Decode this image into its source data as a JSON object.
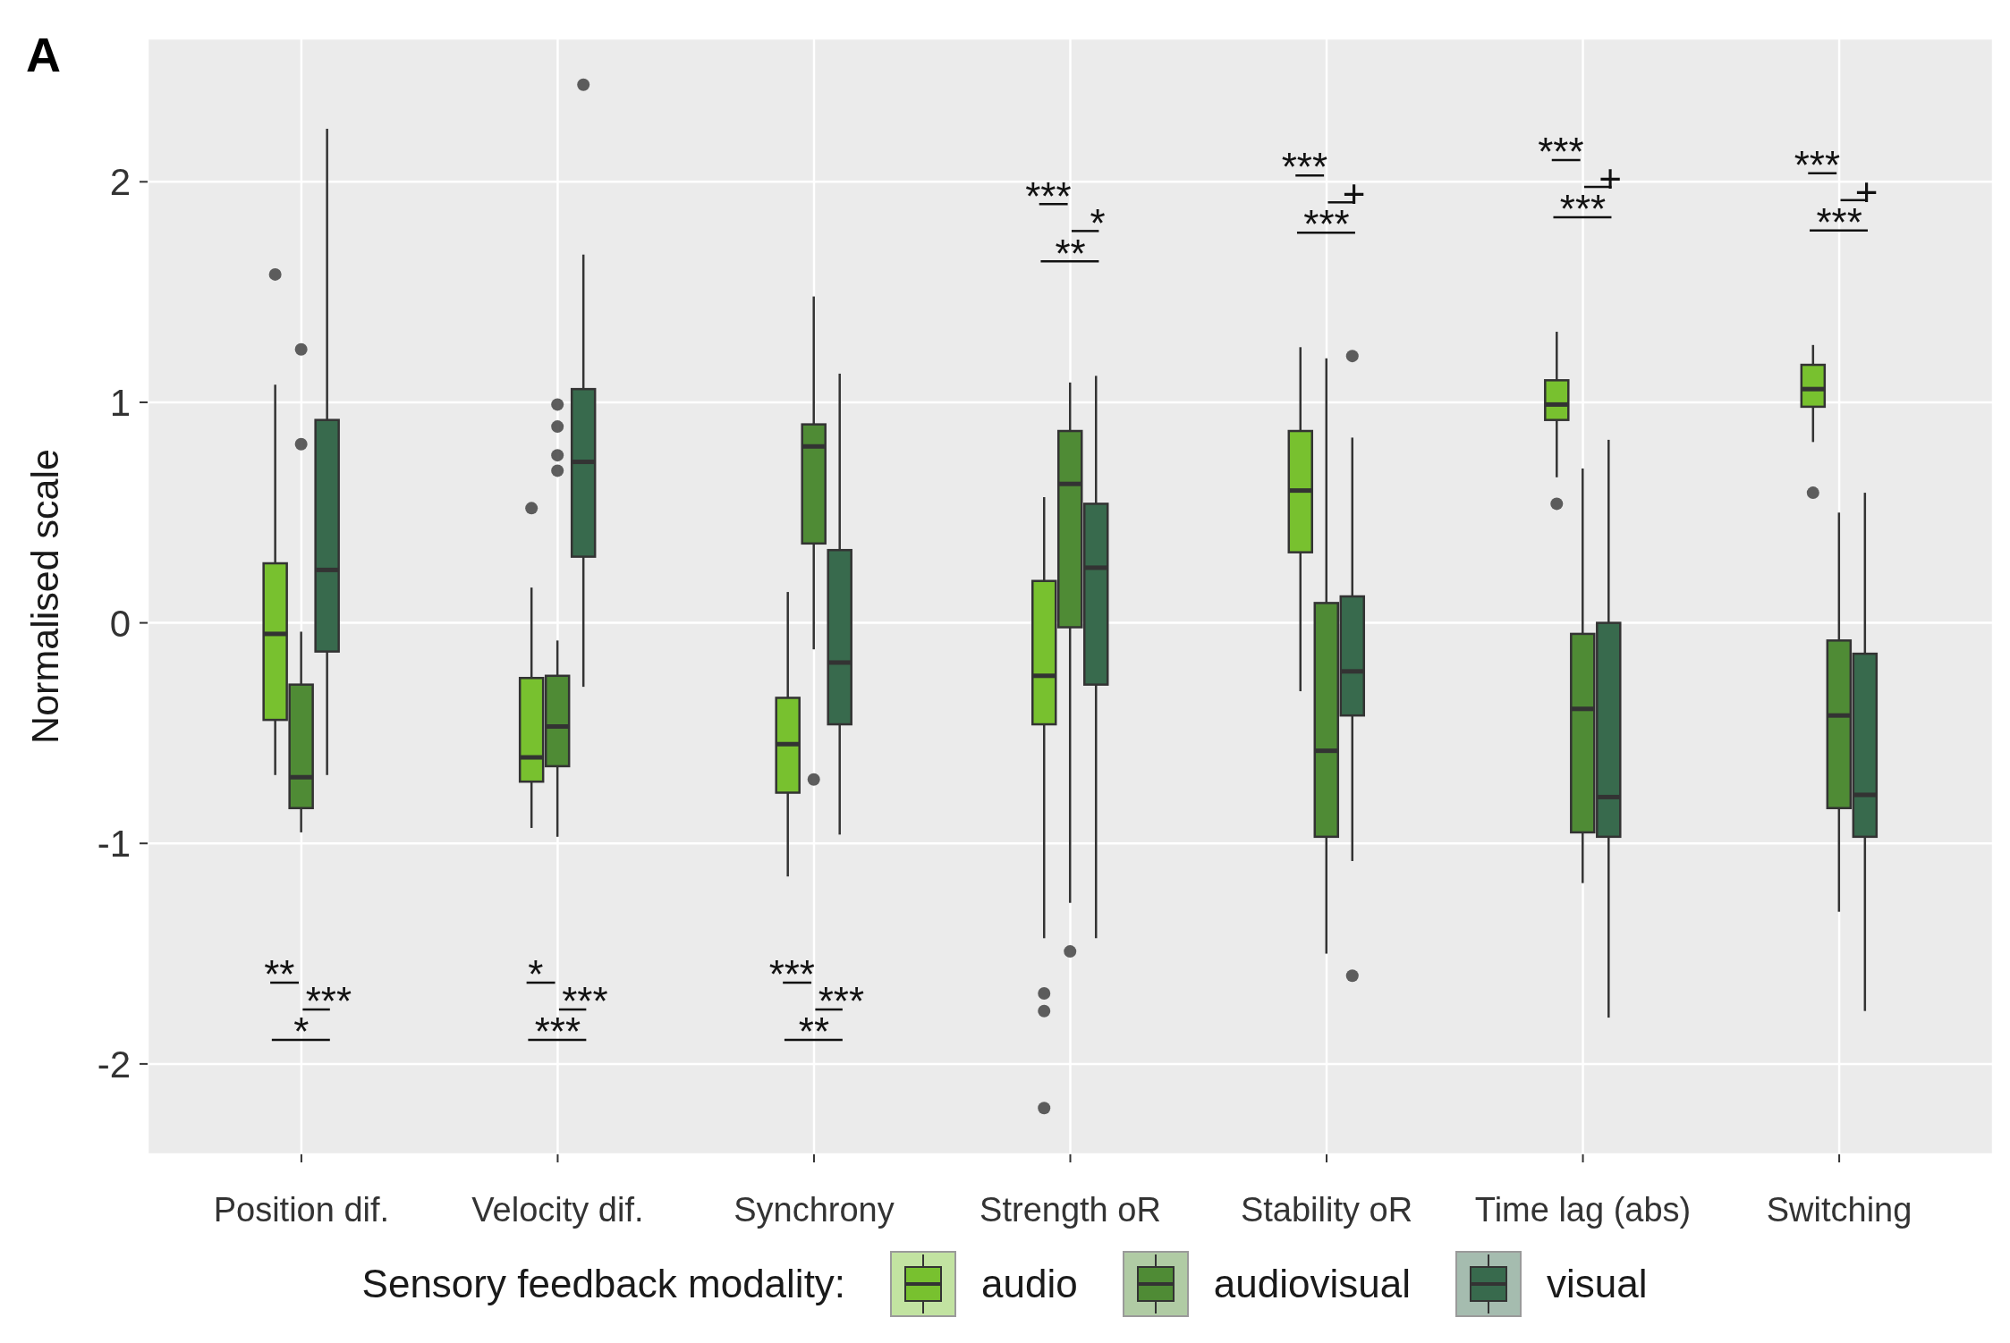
{
  "chart_data": {
    "type": "box",
    "title": "A",
    "ylabel": "Normalised scale",
    "legend_title": "Sensory feedback modality:",
    "categories": [
      "Position dif.",
      "Velocity dif.",
      "Synchrony",
      "Strength oR",
      "Stability oR",
      "Time lag (abs)",
      "Switching"
    ],
    "series": [
      {
        "name": "audio",
        "color": "#78c12f",
        "boxes": [
          {
            "low": -0.69,
            "q1": -0.44,
            "median": -0.05,
            "q3": 0.27,
            "high": 1.08,
            "outliers": [
              1.58
            ]
          },
          {
            "low": -0.93,
            "q1": -0.72,
            "median": -0.61,
            "q3": -0.25,
            "high": 0.16,
            "outliers": [
              0.52
            ]
          },
          {
            "low": -1.15,
            "q1": -0.77,
            "median": -0.55,
            "q3": -0.34,
            "high": 0.14
          },
          {
            "low": -1.43,
            "q1": -0.46,
            "median": -0.24,
            "q3": 0.19,
            "high": 0.57,
            "outliers": [
              -1.68,
              -1.76,
              -2.2
            ]
          },
          {
            "low": -0.31,
            "q1": 0.32,
            "median": 0.6,
            "q3": 0.87,
            "high": 1.25
          },
          {
            "low": 0.66,
            "q1": 0.92,
            "median": 0.99,
            "q3": 1.1,
            "high": 1.32,
            "outliers": [
              0.54
            ]
          },
          {
            "low": 0.82,
            "q1": 0.98,
            "median": 1.06,
            "q3": 1.17,
            "high": 1.26,
            "outliers": [
              0.59
            ]
          }
        ]
      },
      {
        "name": "audiovisual",
        "color": "#4f8b35",
        "boxes": [
          {
            "low": -0.95,
            "q1": -0.84,
            "median": -0.7,
            "q3": -0.28,
            "high": -0.04,
            "outliers": [
              1.24,
              0.81
            ]
          },
          {
            "low": -0.97,
            "q1": -0.65,
            "median": -0.47,
            "q3": -0.24,
            "high": -0.08,
            "outliers": [
              0.99,
              0.89,
              0.76,
              0.69
            ]
          },
          {
            "low": -0.12,
            "q1": 0.36,
            "median": 0.8,
            "q3": 0.9,
            "high": 1.48,
            "outliers": [
              -0.71
            ]
          },
          {
            "low": -1.27,
            "q1": -0.02,
            "median": 0.63,
            "q3": 0.87,
            "high": 1.09,
            "outliers": [
              -1.49
            ]
          },
          {
            "low": -1.5,
            "q1": -0.97,
            "median": -0.58,
            "q3": 0.09,
            "high": 1.2
          },
          {
            "low": -1.18,
            "q1": -0.95,
            "median": -0.39,
            "q3": -0.05,
            "high": 0.7
          },
          {
            "low": -1.31,
            "q1": -0.84,
            "median": -0.42,
            "q3": -0.08,
            "high": 0.5
          }
        ]
      },
      {
        "name": "visual",
        "color": "#386a4d",
        "boxes": [
          {
            "low": -0.69,
            "q1": -0.13,
            "median": 0.24,
            "q3": 0.92,
            "high": 2.24
          },
          {
            "low": -0.29,
            "q1": 0.3,
            "median": 0.73,
            "q3": 1.06,
            "high": 1.67,
            "outliers": [
              2.44
            ]
          },
          {
            "low": -0.96,
            "q1": -0.46,
            "median": -0.18,
            "q3": 0.33,
            "high": 1.13
          },
          {
            "low": -1.43,
            "q1": -0.28,
            "median": 0.25,
            "q3": 0.54,
            "high": 1.12
          },
          {
            "low": -1.08,
            "q1": -0.42,
            "median": -0.22,
            "q3": 0.12,
            "high": 0.84,
            "outliers": [
              1.21,
              -1.6
            ]
          },
          {
            "low": -1.79,
            "q1": -0.97,
            "median": -0.79,
            "q3": 0.0,
            "high": 0.83
          },
          {
            "low": -1.76,
            "q1": -0.97,
            "median": -0.78,
            "q3": -0.14,
            "high": 0.59
          }
        ]
      }
    ],
    "ylim": [
      -2.41,
      2.65
    ],
    "yticks": [
      -2,
      -1,
      0,
      1,
      2
    ],
    "grid": true,
    "legend": "bottom",
    "annotations": [
      "**",
      "***",
      "*",
      "*",
      "***",
      "***",
      "***",
      "***",
      "**",
      "***",
      "*",
      "**",
      "***",
      "+",
      "***",
      "***",
      "+",
      "***",
      "***",
      "+",
      "***"
    ]
  }
}
